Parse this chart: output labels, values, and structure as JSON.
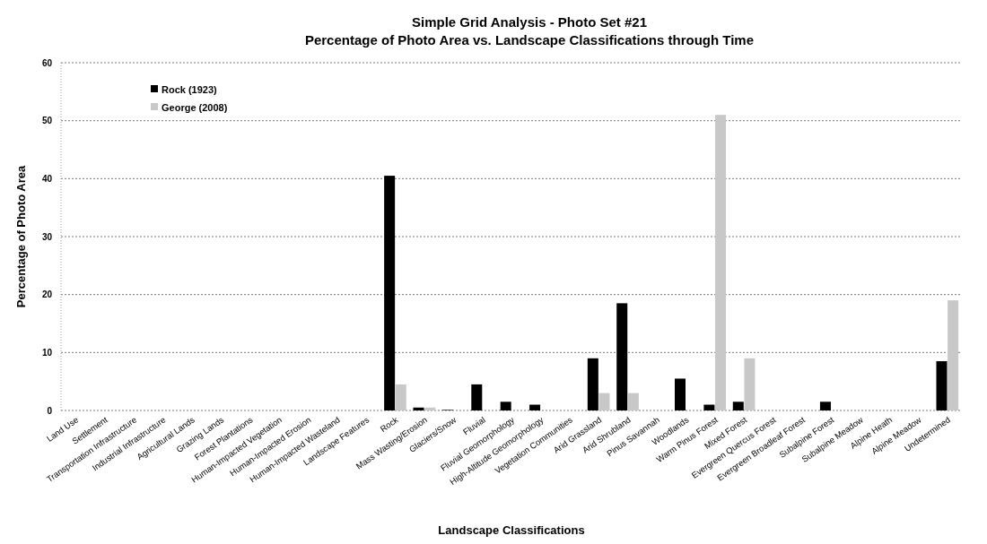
{
  "chart_data": {
    "type": "bar",
    "title": "Simple Grid Analysis - Photo Set #21",
    "subtitle": "Percentage of Photo Area vs. Landscape Classifications through Time",
    "xlabel": "Landscape Classifications",
    "ylabel": "Percentage of Photo Area",
    "categories": [
      "Land Use",
      "Settlement",
      "Transportation Infrastructure",
      "Industrial Infrastructure",
      "Agricultural Lands",
      "Grazing Lands",
      "Forest Plantations",
      "Human-Impacted Vegetation",
      "Human-Impacted Erosion",
      "Human-Impacted Wasteland",
      "Landscape Features",
      "Rock",
      "Mass Wasting/Erosion",
      "Glaciers/Snow",
      "Fluvial",
      "Fluvial Geomorphology",
      "High-Altitude Geomorphology",
      "Vegetation Communities",
      "Arid Grassland",
      "Arid Shrubland",
      "Pinus Savannah",
      "Woodlands",
      "Warm Pinus Forest",
      "Mixed Forest",
      "Evergreen Quercus Forest",
      "Evergreen Broadleaf Forest",
      "Subalpine Forest",
      "Subalpine Meadow",
      "Alpine Heath",
      "Alpine Meadow",
      "Undetermined"
    ],
    "series": [
      {
        "name": "Rock (1923)",
        "color": "#000000",
        "values": [
          0,
          0,
          0,
          0,
          0,
          0,
          0,
          0,
          0,
          0,
          0,
          40.5,
          0.5,
          0.1,
          4.5,
          1.5,
          1,
          0,
          9,
          18.5,
          0,
          5.5,
          1,
          1.5,
          0,
          0,
          1.5,
          0,
          0,
          0,
          8.5
        ]
      },
      {
        "name": "George (2008)",
        "color": "#c8c8c8",
        "values": [
          0,
          0,
          0,
          0,
          0,
          0,
          0,
          0,
          0,
          0,
          0,
          4.5,
          0.5,
          0,
          0,
          0,
          0,
          0,
          3,
          3,
          0,
          0,
          51,
          9,
          0,
          0,
          0,
          0,
          0,
          0,
          19
        ]
      }
    ],
    "ylim": [
      0,
      60
    ],
    "yticks": [
      0,
      10,
      20,
      30,
      40,
      50,
      60
    ],
    "grid": "y",
    "legend": "top left"
  }
}
